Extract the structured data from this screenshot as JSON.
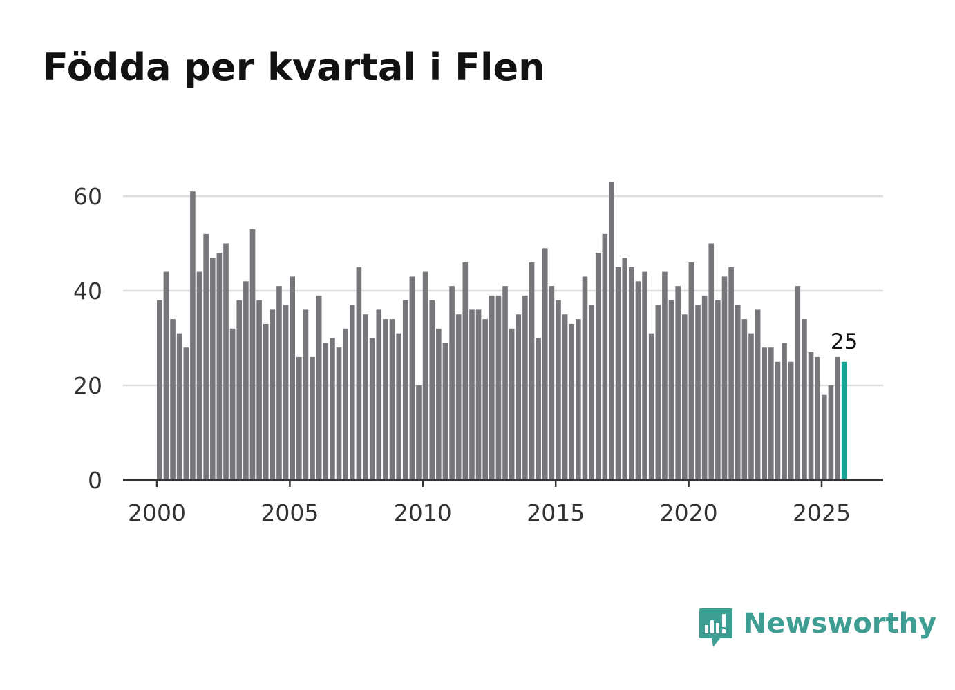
{
  "title": "Födda per kvartal i Flen",
  "brand": {
    "name": "Newsworthy",
    "icon": "newsworthy-logo-icon",
    "color": "#3f9e93"
  },
  "colors": {
    "bar": "#77767b",
    "highlight": "#16a394",
    "grid": "#dddddd",
    "axis": "#333333"
  },
  "chart_data": {
    "type": "bar",
    "title": "Födda per kvartal i Flen",
    "xlabel": "",
    "ylabel": "",
    "ylim": [
      0,
      65
    ],
    "yticks": [
      0,
      20,
      40,
      60
    ],
    "xticks": [
      2000,
      2005,
      2010,
      2015,
      2020,
      2025
    ],
    "start": {
      "year": 2000,
      "quarter": 1
    },
    "grid": true,
    "legend": "none",
    "highlight": {
      "index": 103,
      "label": "25"
    },
    "values": [
      38,
      44,
      34,
      31,
      28,
      61,
      44,
      52,
      47,
      48,
      50,
      32,
      38,
      42,
      53,
      38,
      33,
      36,
      41,
      37,
      43,
      26,
      36,
      26,
      39,
      29,
      30,
      28,
      32,
      37,
      45,
      35,
      30,
      36,
      34,
      34,
      31,
      38,
      43,
      20,
      44,
      38,
      32,
      29,
      41,
      35,
      46,
      36,
      36,
      34,
      39,
      39,
      41,
      32,
      35,
      39,
      46,
      30,
      49,
      41,
      38,
      35,
      33,
      34,
      43,
      37,
      48,
      52,
      63,
      45,
      47,
      45,
      42,
      44,
      31,
      37,
      44,
      38,
      41,
      35,
      46,
      37,
      39,
      50,
      38,
      43,
      45,
      37,
      34,
      31,
      36,
      28,
      28,
      25,
      29,
      25,
      41,
      34,
      27,
      26,
      18,
      20,
      26,
      25
    ]
  }
}
